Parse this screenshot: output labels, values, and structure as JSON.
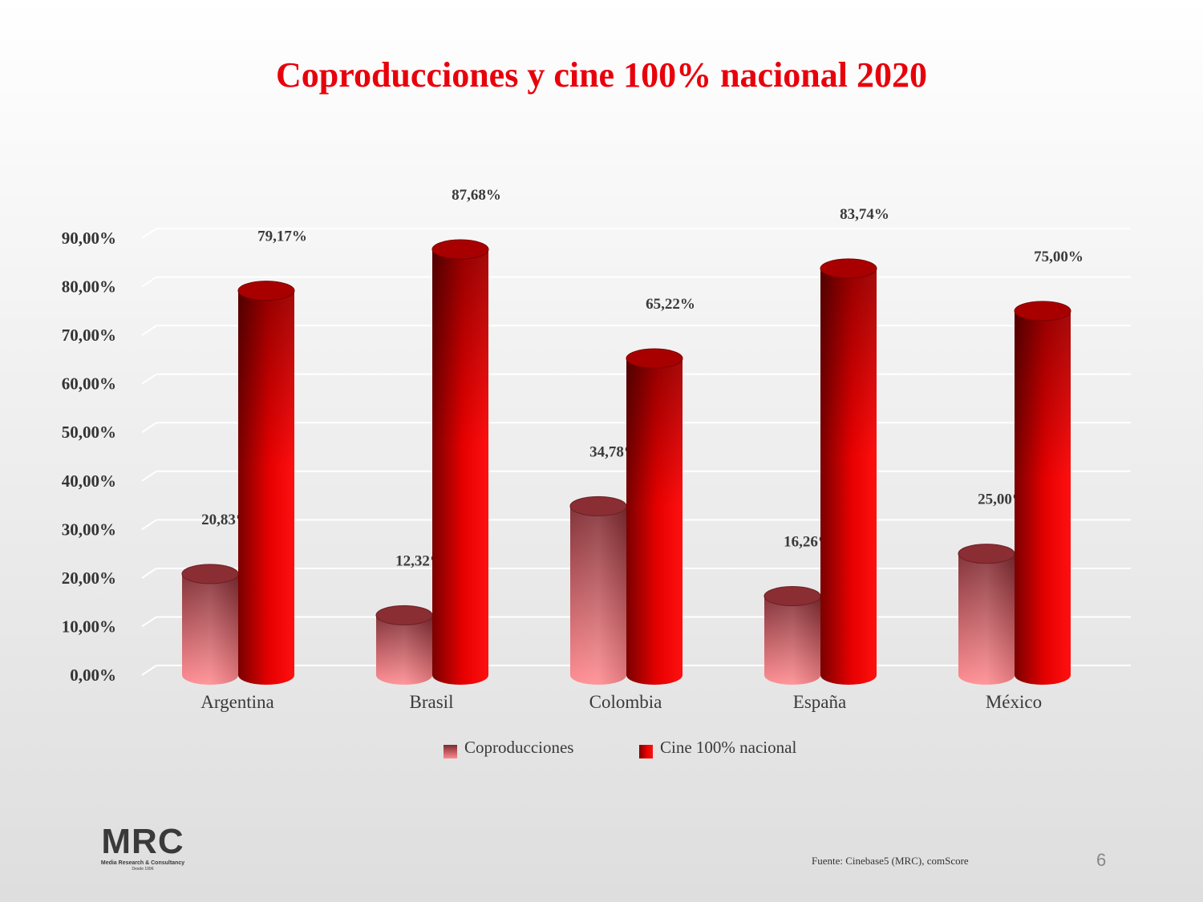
{
  "colors": {
    "title": "#e8000b",
    "series_1": "#d9545f",
    "series_2": "#e40000"
  },
  "chart_data": {
    "type": "bar",
    "title": "Coproducciones y cine 100% nacional 2020",
    "categories": [
      "Argentina",
      "Brasil",
      "Colombia",
      "España",
      "México"
    ],
    "series": [
      {
        "name": "Coproducciones",
        "values": [
          20.83,
          12.32,
          34.78,
          16.26,
          25.0
        ],
        "labels": [
          "20,83%",
          "12,32%",
          "34,78%",
          "16,26%",
          "25,00%"
        ]
      },
      {
        "name": "Cine 100% nacional",
        "values": [
          79.17,
          87.68,
          65.22,
          83.74,
          75.0
        ],
        "labels": [
          "79,17%",
          "87,68%",
          "65,22%",
          "83,74%",
          "75,00%"
        ]
      }
    ],
    "ylim": [
      0,
      90
    ],
    "yticks": [
      "0,00%",
      "10,00%",
      "20,00%",
      "30,00%",
      "40,00%",
      "50,00%",
      "60,00%",
      "70,00%",
      "80,00%",
      "90,00%"
    ],
    "grid": true,
    "legend_position": "bottom",
    "style": "3d-cylinder"
  },
  "footer": {
    "logo": {
      "mark": "MRC",
      "name": "Media Research & Consultancy",
      "since": "Desde 1996"
    },
    "source": "Fuente: Cinebase5 (MRC), comScore",
    "page_number": "6"
  }
}
